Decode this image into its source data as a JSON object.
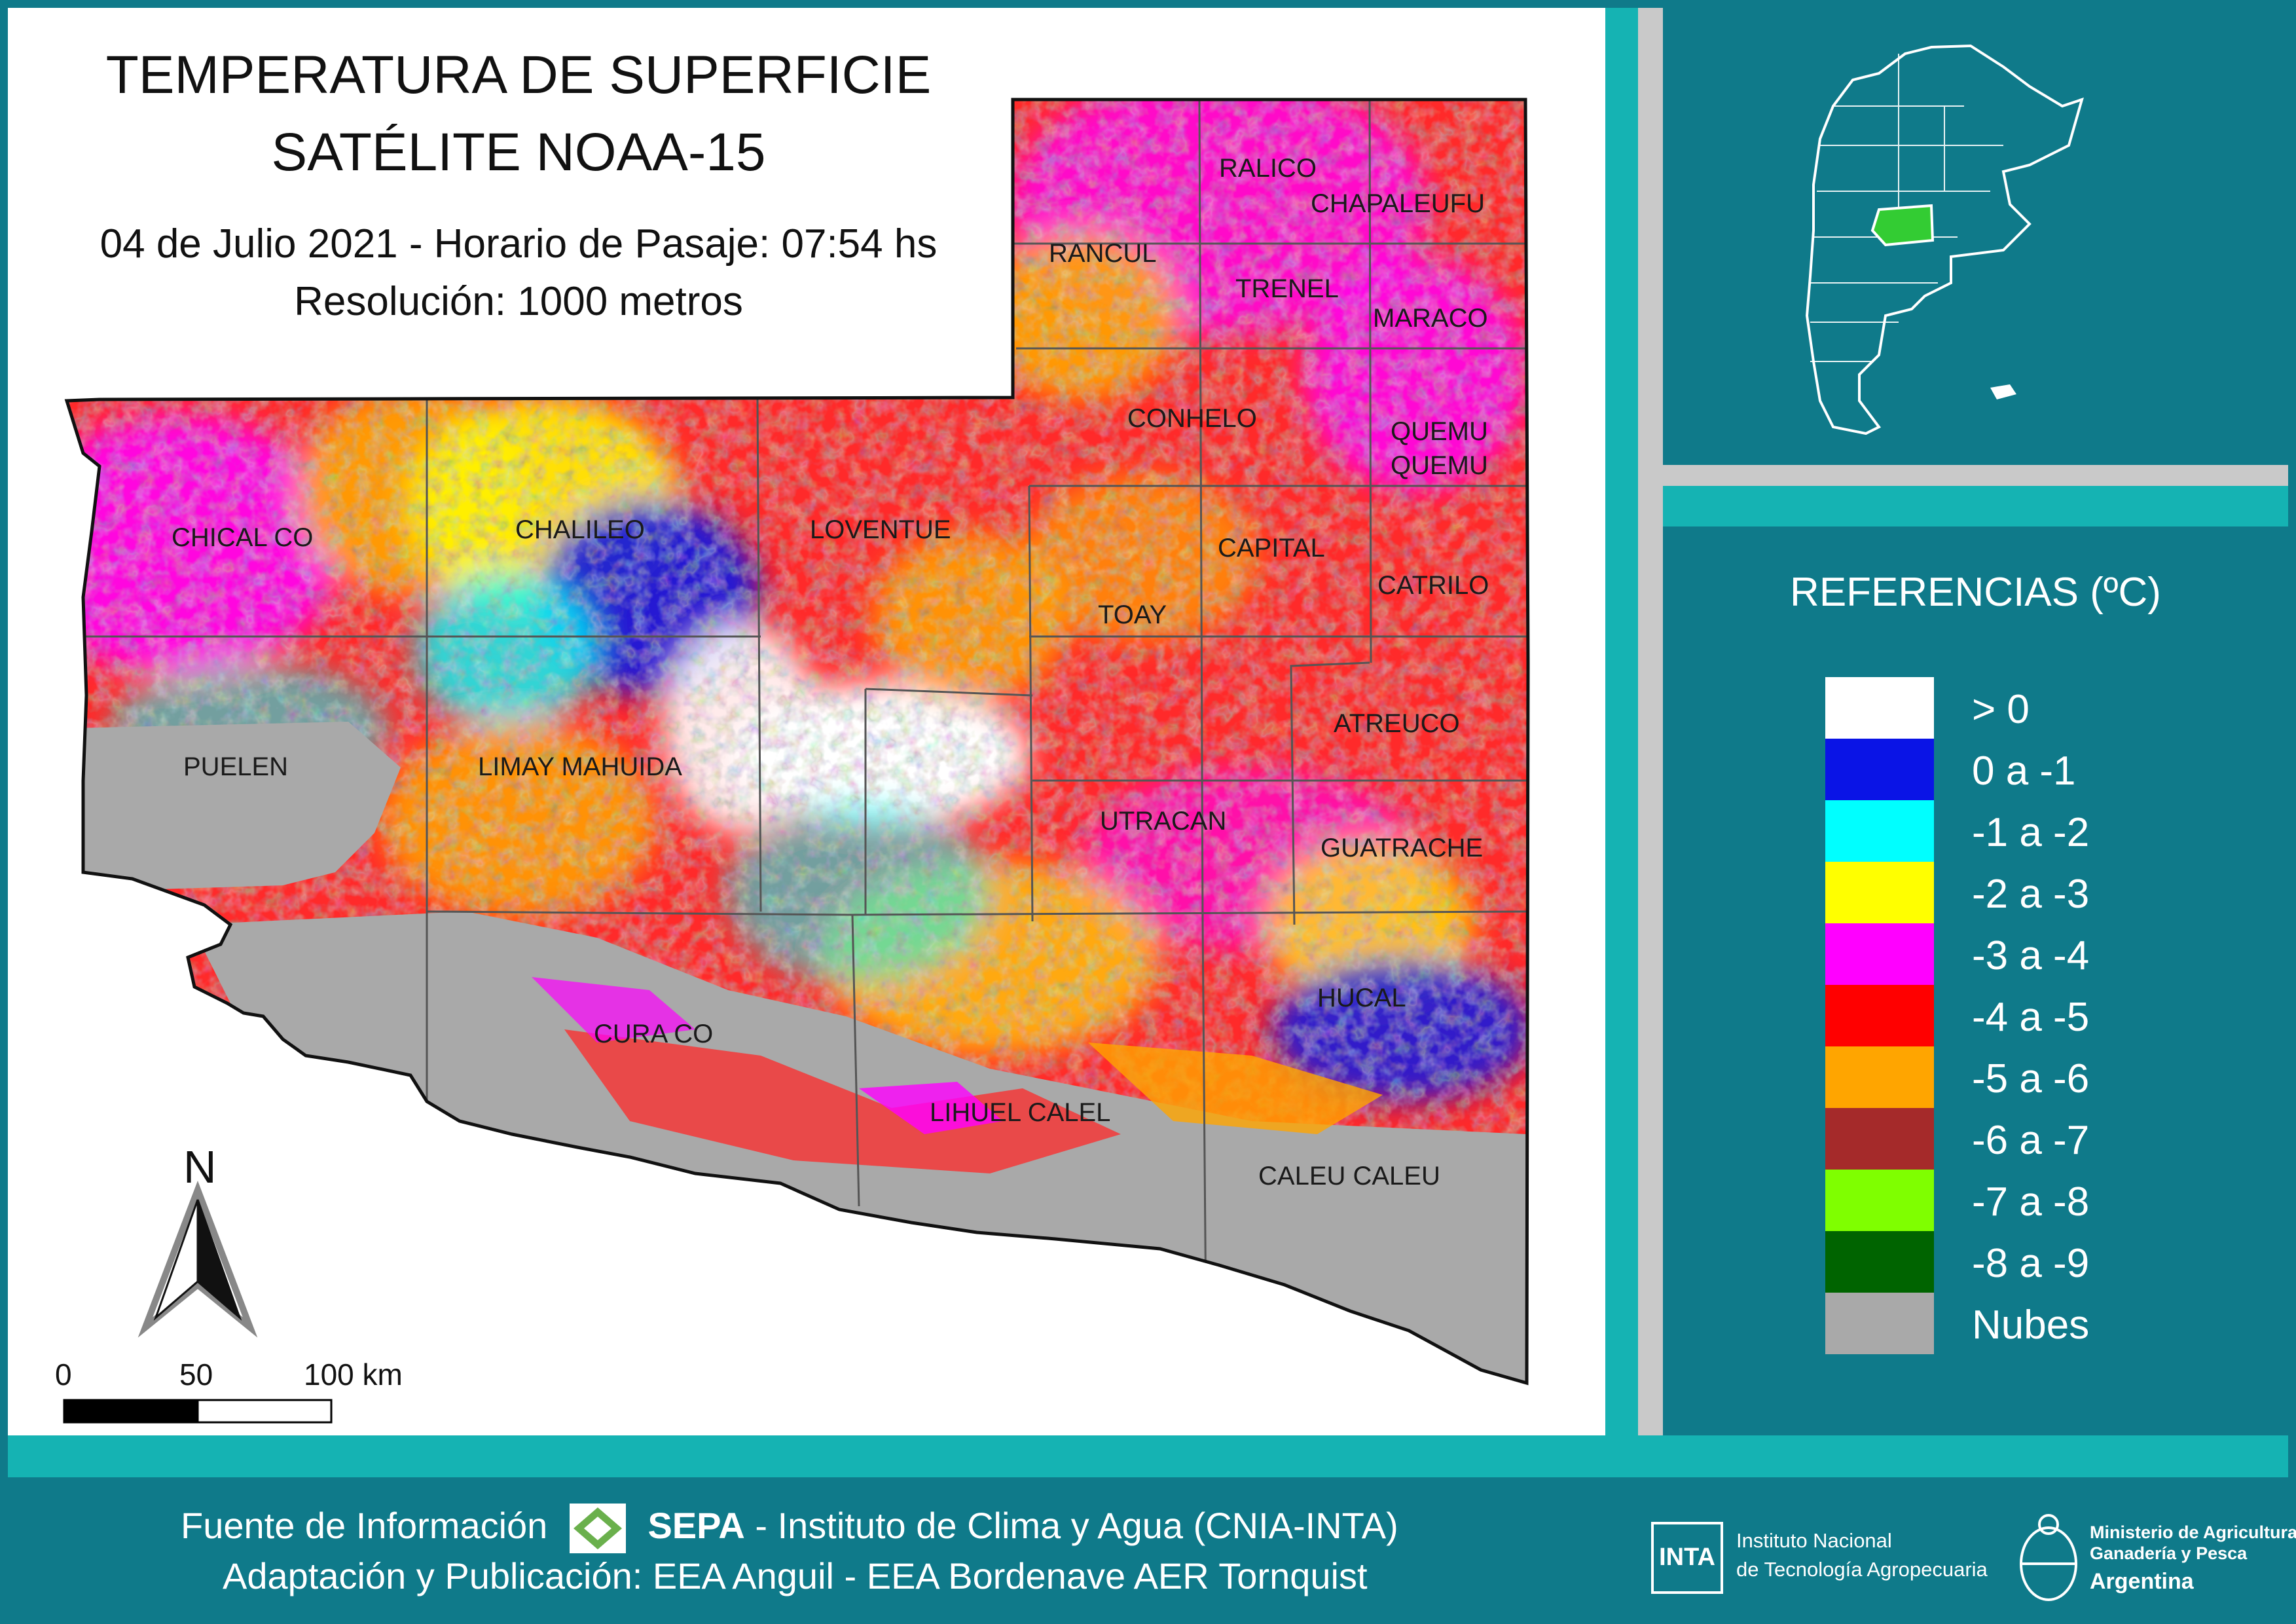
{
  "title": {
    "line1": "TEMPERATURA DE SUPERFICIE",
    "line2": "SATÉLITE NOAA-15",
    "date_line": "04 de Julio 2021 - Horario de Pasaje: 07:54 hs",
    "resolution_line": "Resolución: 1000 metros"
  },
  "departments": [
    {
      "name": "RANCUL"
    },
    {
      "name": "RALICO"
    },
    {
      "name": "CHAPALEUFU"
    },
    {
      "name": "TRENEL"
    },
    {
      "name": "MARACO"
    },
    {
      "name": "CONHELO"
    },
    {
      "name": "QUEMU"
    },
    {
      "name": "QUEMU"
    },
    {
      "name": "CHICAL CO"
    },
    {
      "name": "CHALILEO"
    },
    {
      "name": "LOVENTUE"
    },
    {
      "name": "CAPITAL"
    },
    {
      "name": "TOAY"
    },
    {
      "name": "CATRILO"
    },
    {
      "name": "ATREUCO"
    },
    {
      "name": "PUELEN"
    },
    {
      "name": "LIMAY MAHUIDA"
    },
    {
      "name": "UTRACAN"
    },
    {
      "name": "GUATRACHE"
    },
    {
      "name": "HUCAL"
    },
    {
      "name": "CURA CO"
    },
    {
      "name": "LIHUEL CALEL"
    },
    {
      "name": "CALEU CALEU"
    }
  ],
  "north_arrow": {
    "letter": "N"
  },
  "scale_bar": {
    "labels": [
      "0",
      "50",
      "100 km"
    ]
  },
  "legend": {
    "title": "REFERENCIAS (ºC)",
    "items": [
      {
        "label": "> 0",
        "color": "#ffffff"
      },
      {
        "label": "0 a -1",
        "color": "#0a14e6"
      },
      {
        "label": "-1 a -2",
        "color": "#00ffff"
      },
      {
        "label": "-2 a -3",
        "color": "#ffff00"
      },
      {
        "label": "-3 a -4",
        "color": "#ff00ff"
      },
      {
        "label": "-4 a -5",
        "color": "#ff0000"
      },
      {
        "label": "-5 a -6",
        "color": "#ffa500"
      },
      {
        "label": "-6 a -7",
        "color": "#a52a2a"
      },
      {
        "label": "-7 a -8",
        "color": "#7fff00"
      },
      {
        "label": "-8 a -9",
        "color": "#006400"
      },
      {
        "label": "Nubes",
        "color": "#a9a9a9"
      }
    ]
  },
  "inset": {
    "highlight_color": "#33cc33"
  },
  "footer": {
    "source_prefix": "Fuente de Información",
    "source_bold": "SEPA",
    "source_rest": "- Instituto de Clima y Agua (CNIA-INTA)",
    "adaptation": "Adaptación y Publicación: EEA Anguil - EEA Bordenave AER Tornquist",
    "inta_logo": "INTA",
    "inta_line1": "Instituto Nacional",
    "inta_line2": "de Tecnología Agropecuaria",
    "ministry_line1": "Ministerio de Agricultura,",
    "ministry_line2": "Ganadería y Pesca",
    "ministry_line3": "Argentina"
  }
}
